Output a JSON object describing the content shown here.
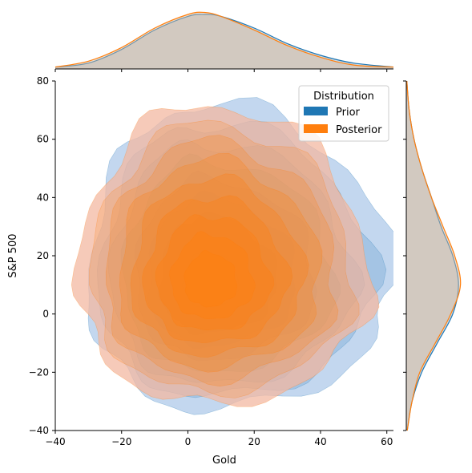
{
  "chart_data": {
    "type": "jointplot-kde",
    "title": "",
    "xlabel": "Gold",
    "ylabel": "S&P 500",
    "xlim": [
      -40,
      62
    ],
    "ylim": [
      -40,
      80
    ],
    "xticks": [
      -40,
      -20,
      0,
      20,
      40,
      60
    ],
    "yticks": [
      -40,
      -20,
      0,
      20,
      40,
      60,
      80
    ],
    "legend": {
      "title": "Distribution",
      "placement": "top-right"
    },
    "series": [
      {
        "name": "Prior",
        "color": "#1f77b4",
        "center": [
          5,
          10
        ],
        "spread_x": 13,
        "spread_y": 15,
        "outer_extent": {
          "x": [
            -30,
            62
          ],
          "y": [
            -33,
            72
          ]
        }
      },
      {
        "name": "Posterior",
        "color": "#ff7f0e",
        "center": [
          6,
          10
        ],
        "spread_x": 13,
        "spread_y": 15,
        "outer_extent": {
          "x": [
            -33,
            55
          ],
          "y": [
            -31,
            72
          ]
        }
      }
    ],
    "marginal_x": {
      "axis": "Gold",
      "x": [
        -40,
        -30,
        -20,
        -10,
        0,
        5,
        10,
        20,
        30,
        40,
        50,
        62
      ],
      "prior": [
        0.001,
        0.003,
        0.01,
        0.02,
        0.027,
        0.028,
        0.027,
        0.021,
        0.013,
        0.007,
        0.003,
        0.001
      ],
      "posterior": [
        0.001,
        0.004,
        0.011,
        0.021,
        0.028,
        0.029,
        0.027,
        0.02,
        0.012,
        0.006,
        0.002,
        0.001
      ]
    },
    "marginal_y": {
      "axis": "S&P 500",
      "y": [
        -40,
        -30,
        -20,
        -10,
        0,
        10,
        20,
        30,
        40,
        50,
        60,
        70,
        80
      ],
      "prior": [
        0.0005,
        0.003,
        0.008,
        0.016,
        0.024,
        0.027,
        0.024,
        0.018,
        0.013,
        0.008,
        0.004,
        0.0015,
        0.0003
      ],
      "posterior": [
        0.0005,
        0.003,
        0.007,
        0.015,
        0.023,
        0.028,
        0.025,
        0.019,
        0.013,
        0.008,
        0.004,
        0.0015,
        0.0003
      ]
    }
  }
}
